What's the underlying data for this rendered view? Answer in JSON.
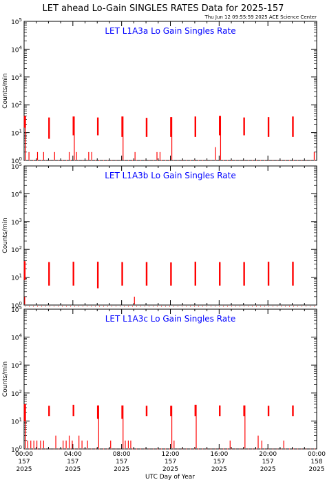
{
  "header": {
    "title": "LET ahead Lo-Gain SINGLES RATES Data for 2025-157",
    "timestamp": "Thu Jun 12 09:55:59 2025 ACE Science Center"
  },
  "xaxis": {
    "label": "UTC Day of Year",
    "ticks": [
      {
        "hour": 0,
        "time": "00:00",
        "doy": "157",
        "year": "2025"
      },
      {
        "hour": 4,
        "time": "04:00",
        "doy": "157",
        "year": "2025"
      },
      {
        "hour": 8,
        "time": "08:00",
        "doy": "157",
        "year": "2025"
      },
      {
        "hour": 12,
        "time": "12:00",
        "doy": "157",
        "year": "2025"
      },
      {
        "hour": 16,
        "time": "16:00",
        "doy": "157",
        "year": "2025"
      },
      {
        "hour": 20,
        "time": "20:00",
        "doy": "157",
        "year": "2025"
      },
      {
        "hour": 24,
        "time": "00:00",
        "doy": "158",
        "year": "2025"
      }
    ]
  },
  "colors": {
    "data": "#ff0000",
    "panel_title": "#0000ff",
    "axis": "#000000"
  },
  "chart_data": [
    {
      "type": "line",
      "title": "LET L1A3a Lo Gain Singles Rate",
      "ylabel": "Counts/min",
      "yscale": "log",
      "ylim": [
        1,
        100000
      ],
      "xlim": [
        0,
        24
      ],
      "ytick_labels": [
        {
          "base": "10",
          "exp": "0"
        },
        {
          "base": "10",
          "exp": "1"
        },
        {
          "base": "10",
          "exp": "2"
        },
        {
          "base": "10",
          "exp": "3"
        },
        {
          "base": "10",
          "exp": "4"
        },
        {
          "base": "10",
          "exp": "5"
        }
      ],
      "bursts": [
        {
          "x": 0.05,
          "low": 15,
          "high": 40
        },
        {
          "x": 2.05,
          "low": 6,
          "high": 35
        },
        {
          "x": 4.05,
          "low": 8,
          "high": 38
        },
        {
          "x": 6.05,
          "low": 8,
          "high": 35
        },
        {
          "x": 8.05,
          "low": 7,
          "high": 38
        },
        {
          "x": 10.05,
          "low": 7,
          "high": 34
        },
        {
          "x": 12.05,
          "low": 7,
          "high": 36
        },
        {
          "x": 14.05,
          "low": 7,
          "high": 38
        },
        {
          "x": 16.05,
          "low": 8,
          "high": 40
        },
        {
          "x": 18.05,
          "low": 8,
          "high": 35
        },
        {
          "x": 20.05,
          "low": 7,
          "high": 36
        },
        {
          "x": 22.05,
          "low": 7,
          "high": 38
        }
      ],
      "spikes": [
        {
          "x": 0.05,
          "high": 40
        },
        {
          "x": 4.05,
          "high": 38
        },
        {
          "x": 8.05,
          "high": 38
        },
        {
          "x": 12.05,
          "high": 36
        },
        {
          "x": 16.05,
          "high": 40
        }
      ],
      "low_bars": [
        {
          "x": 0.4,
          "high": 2
        },
        {
          "x": 1.1,
          "high": 2
        },
        {
          "x": 1.6,
          "high": 2
        },
        {
          "x": 2.5,
          "high": 2
        },
        {
          "x": 3.7,
          "high": 2
        },
        {
          "x": 4.3,
          "high": 2
        },
        {
          "x": 5.3,
          "high": 2
        },
        {
          "x": 5.55,
          "high": 2
        },
        {
          "x": 9.1,
          "high": 2
        },
        {
          "x": 10.9,
          "high": 2
        },
        {
          "x": 11.15,
          "high": 2
        },
        {
          "x": 15.7,
          "high": 3
        },
        {
          "x": 23.8,
          "high": 2
        }
      ],
      "baseline": 1.0
    },
    {
      "type": "line",
      "title": "LET L1A3b Lo Gain Singles Rate",
      "ylabel": "Counts/min",
      "yscale": "log",
      "ylim": [
        1,
        100000
      ],
      "xlim": [
        0,
        24
      ],
      "ytick_labels": [
        {
          "base": "10",
          "exp": "0"
        },
        {
          "base": "10",
          "exp": "1"
        },
        {
          "base": "10",
          "exp": "2"
        },
        {
          "base": "10",
          "exp": "3"
        },
        {
          "base": "10",
          "exp": "4"
        },
        {
          "base": "10",
          "exp": "5"
        }
      ],
      "bursts": [
        {
          "x": 0.05,
          "low": 8,
          "high": 38
        },
        {
          "x": 2.05,
          "low": 5,
          "high": 35
        },
        {
          "x": 4.05,
          "low": 5,
          "high": 36
        },
        {
          "x": 6.05,
          "low": 4,
          "high": 36
        },
        {
          "x": 8.05,
          "low": 5,
          "high": 35
        },
        {
          "x": 10.05,
          "low": 5,
          "high": 35
        },
        {
          "x": 12.05,
          "low": 5,
          "high": 34
        },
        {
          "x": 14.05,
          "low": 5,
          "high": 36
        },
        {
          "x": 16.05,
          "low": 5,
          "high": 35
        },
        {
          "x": 18.05,
          "low": 5,
          "high": 35
        },
        {
          "x": 20.05,
          "low": 5,
          "high": 36
        },
        {
          "x": 22.05,
          "low": 5,
          "high": 36
        }
      ],
      "spikes": [],
      "low_bars": [
        {
          "x": 0.05,
          "high": 2
        },
        {
          "x": 9.05,
          "high": 2
        }
      ],
      "baseline": 0.9
    },
    {
      "type": "line",
      "title": "LET L1A3c Lo Gain Singles Rate",
      "ylabel": "Counts/min",
      "yscale": "log",
      "ylim": [
        1,
        100000
      ],
      "xlim": [
        0,
        24
      ],
      "ytick_labels": [
        {
          "base": "10",
          "exp": "0"
        },
        {
          "base": "10",
          "exp": "1"
        },
        {
          "base": "10",
          "exp": "2"
        },
        {
          "base": "10",
          "exp": "3"
        },
        {
          "base": "10",
          "exp": "4"
        },
        {
          "base": "10",
          "exp": "5"
        }
      ],
      "bursts": [
        {
          "x": 0.05,
          "low": 10,
          "high": 40
        },
        {
          "x": 2.05,
          "low": 15,
          "high": 35
        },
        {
          "x": 4.05,
          "low": 15,
          "high": 38
        },
        {
          "x": 6.05,
          "low": 12,
          "high": 36
        },
        {
          "x": 8.05,
          "low": 12,
          "high": 36
        },
        {
          "x": 10.05,
          "low": 15,
          "high": 35
        },
        {
          "x": 12.05,
          "low": 15,
          "high": 35
        },
        {
          "x": 14.05,
          "low": 15,
          "high": 38
        },
        {
          "x": 16.05,
          "low": 15,
          "high": 36
        },
        {
          "x": 18.05,
          "low": 15,
          "high": 36
        },
        {
          "x": 20.05,
          "low": 15,
          "high": 35
        },
        {
          "x": 22.05,
          "low": 15,
          "high": 36
        }
      ],
      "spikes": [
        {
          "x": 0.05,
          "high": 40
        },
        {
          "x": 6.05,
          "high": 36
        },
        {
          "x": 8.05,
          "high": 36
        },
        {
          "x": 12.05,
          "high": 35
        },
        {
          "x": 14.05,
          "high": 38
        },
        {
          "x": 18.05,
          "high": 36
        }
      ],
      "low_bars": [
        {
          "x": 0.3,
          "high": 2
        },
        {
          "x": 0.55,
          "high": 2
        },
        {
          "x": 0.8,
          "high": 2
        },
        {
          "x": 1.05,
          "high": 2
        },
        {
          "x": 1.35,
          "high": 2
        },
        {
          "x": 1.6,
          "high": 2
        },
        {
          "x": 2.6,
          "high": 3
        },
        {
          "x": 3.2,
          "high": 2
        },
        {
          "x": 3.45,
          "high": 2
        },
        {
          "x": 3.7,
          "high": 3
        },
        {
          "x": 3.95,
          "high": 2
        },
        {
          "x": 4.5,
          "high": 3
        },
        {
          "x": 4.75,
          "high": 2
        },
        {
          "x": 5.2,
          "high": 2
        },
        {
          "x": 7.1,
          "high": 2
        },
        {
          "x": 8.3,
          "high": 2
        },
        {
          "x": 8.55,
          "high": 2
        },
        {
          "x": 8.75,
          "high": 2
        },
        {
          "x": 12.3,
          "high": 2
        },
        {
          "x": 16.9,
          "high": 2
        },
        {
          "x": 19.2,
          "high": 3
        },
        {
          "x": 19.5,
          "high": 2
        },
        {
          "x": 21.3,
          "high": 2
        }
      ],
      "baseline": 1.0
    }
  ]
}
